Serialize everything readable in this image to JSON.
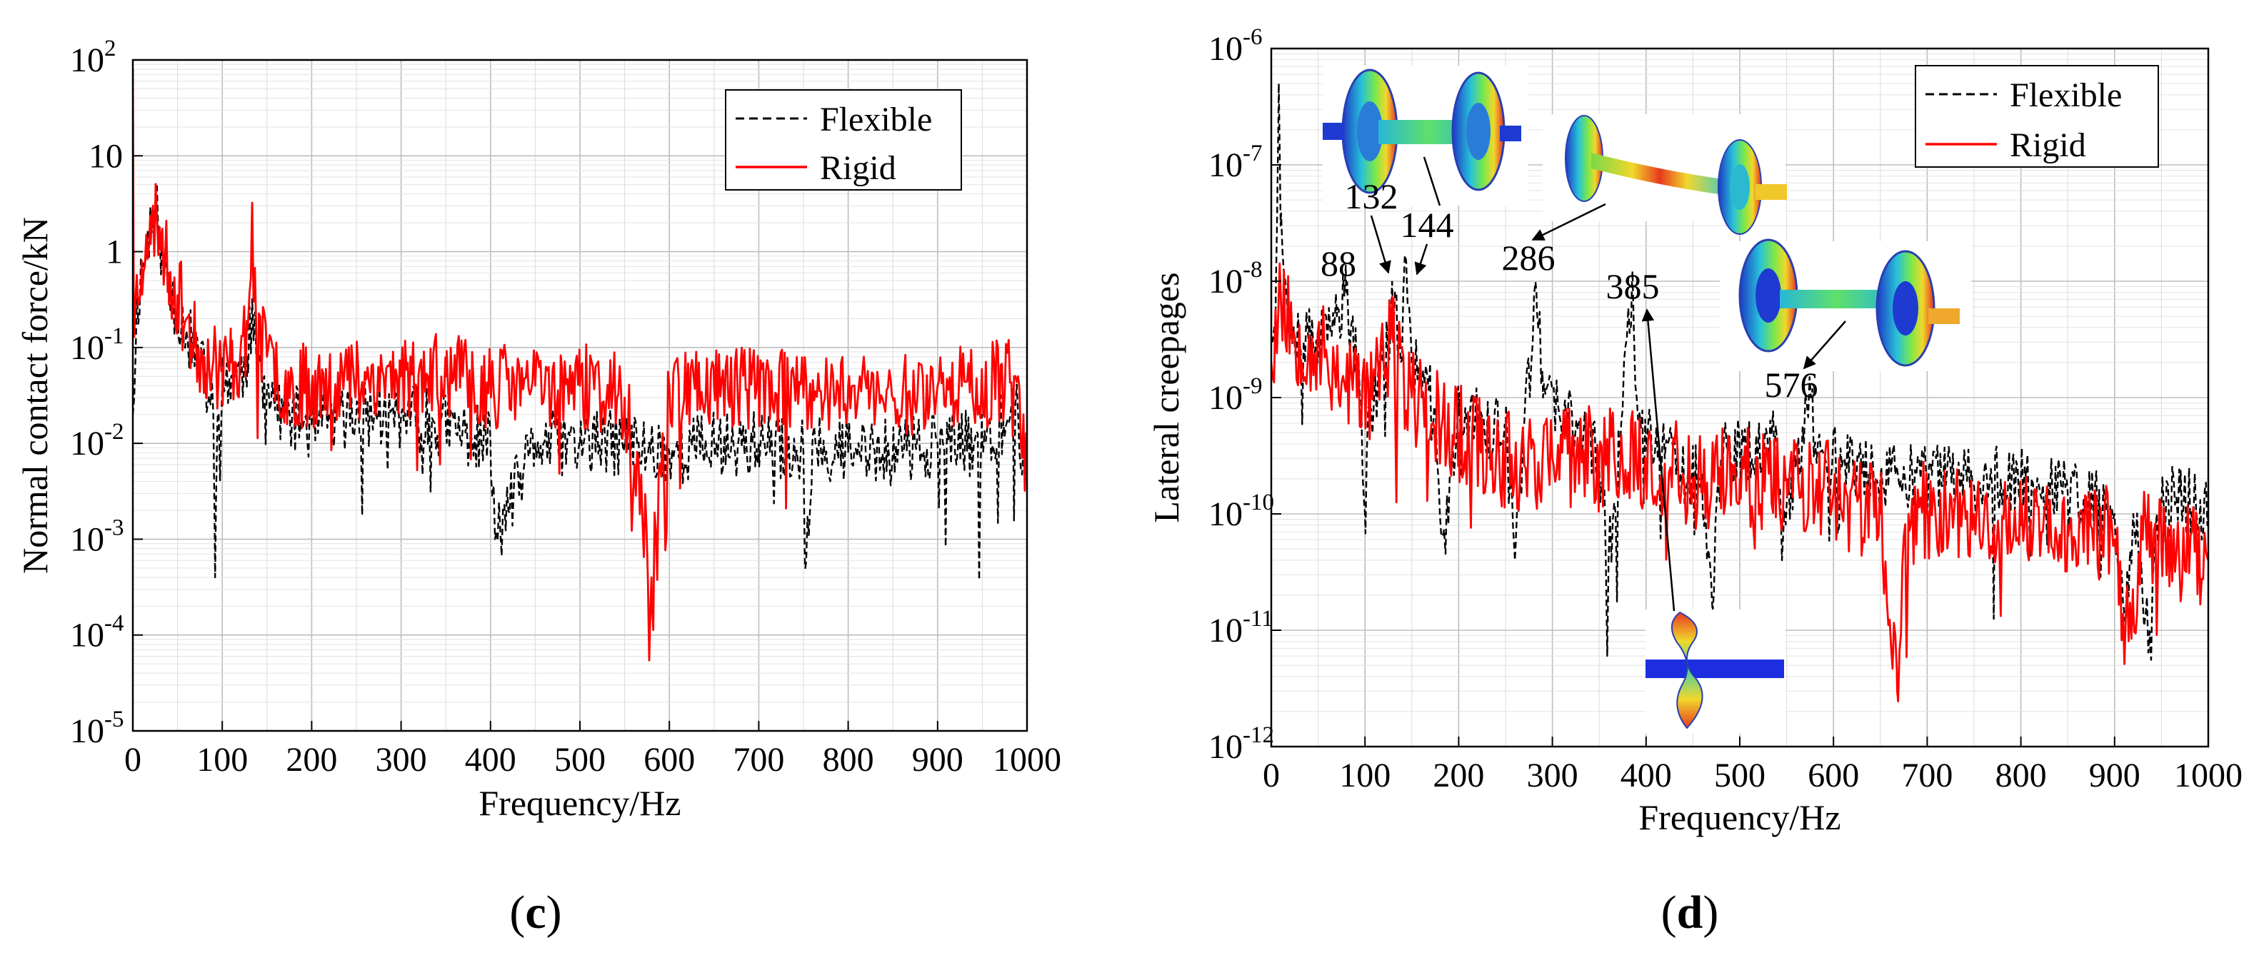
{
  "chart_data": [
    {
      "id": "c",
      "type": "line",
      "caption": "(c)",
      "caption_letter": "c",
      "xlabel": "Frequency/Hz",
      "ylabel": "Normal contact force/kN",
      "x_scale": "linear",
      "y_scale": "log",
      "xlim": [
        0,
        1000
      ],
      "ylim": [
        1e-05,
        100
      ],
      "grid": true,
      "legend_position": "top-right",
      "x_ticks": [
        "0",
        "100",
        "200",
        "300",
        "400",
        "500",
        "600",
        "700",
        "800",
        "900",
        "1000"
      ],
      "y_ticks": [
        {
          "exp": -5,
          "base": "10",
          "sup": "-5"
        },
        {
          "exp": -4,
          "base": "10",
          "sup": "-4"
        },
        {
          "exp": -3,
          "base": "10",
          "sup": "-3"
        },
        {
          "exp": -2,
          "base": "10",
          "sup": "-2"
        },
        {
          "exp": -1,
          "base": "10",
          "sup": "-1"
        },
        {
          "exp": 0,
          "base": "1",
          "sup": ""
        },
        {
          "exp": 1,
          "base": "10",
          "sup": ""
        },
        {
          "exp": 2,
          "base": "10",
          "sup": "2"
        }
      ],
      "series": [
        {
          "name": "Flexible",
          "color": "#000000",
          "style": "dashed",
          "seed": 11,
          "jitter": 0.35,
          "keypoints": [
            [
              0,
              0.02
            ],
            [
              5,
              0.3
            ],
            [
              10,
              0.6
            ],
            [
              15,
              1.0
            ],
            [
              20,
              2.0
            ],
            [
              25,
              3.0
            ],
            [
              30,
              1.5
            ],
            [
              40,
              0.4
            ],
            [
              50,
              0.25
            ],
            [
              60,
              0.15
            ],
            [
              70,
              0.08
            ],
            [
              80,
              0.05
            ],
            [
              90,
              0.02
            ],
            [
              92,
              0.0004
            ],
            [
              95,
              0.02
            ],
            [
              100,
              0.04
            ],
            [
              110,
              0.05
            ],
            [
              120,
              0.05
            ],
            [
              128,
              0.08
            ],
            [
              133,
              0.2
            ],
            [
              138,
              0.08
            ],
            [
              150,
              0.04
            ],
            [
              170,
              0.02
            ],
            [
              200,
              0.015
            ],
            [
              250,
              0.02
            ],
            [
              300,
              0.02
            ],
            [
              350,
              0.015
            ],
            [
              400,
              0.01
            ],
            [
              405,
              0.001
            ],
            [
              450,
              0.01
            ],
            [
              500,
              0.01
            ],
            [
              550,
              0.01
            ],
            [
              600,
              0.008
            ],
            [
              650,
              0.01
            ],
            [
              700,
              0.01
            ],
            [
              750,
              0.008
            ],
            [
              752,
              0.0005
            ],
            [
              760,
              0.01
            ],
            [
              800,
              0.008
            ],
            [
              850,
              0.008
            ],
            [
              900,
              0.01
            ],
            [
              950,
              0.01
            ],
            [
              990,
              0.02
            ],
            [
              1000,
              0.004
            ]
          ]
        },
        {
          "name": "Rigid",
          "color": "#ff0000",
          "style": "solid",
          "seed": 23,
          "jitter": 0.45,
          "keypoints": [
            [
              0,
              80
            ],
            [
              1,
              0.2
            ],
            [
              5,
              0.4
            ],
            [
              10,
              0.8
            ],
            [
              15,
              1.5
            ],
            [
              20,
              1.2
            ],
            [
              25,
              2.5
            ],
            [
              30,
              1.8
            ],
            [
              40,
              0.6
            ],
            [
              50,
              0.35
            ],
            [
              60,
              0.2
            ],
            [
              70,
              0.1
            ],
            [
              80,
              0.08
            ],
            [
              100,
              0.06
            ],
            [
              110,
              0.07
            ],
            [
              120,
              0.08
            ],
            [
              128,
              0.15
            ],
            [
              133,
              2.0
            ],
            [
              138,
              0.15
            ],
            [
              150,
              0.08
            ],
            [
              170,
              0.04
            ],
            [
              200,
              0.04
            ],
            [
              250,
              0.05
            ],
            [
              300,
              0.05
            ],
            [
              350,
              0.05
            ],
            [
              400,
              0.04
            ],
            [
              450,
              0.04
            ],
            [
              500,
              0.04
            ],
            [
              550,
              0.03
            ],
            [
              580,
              0.0004
            ],
            [
              600,
              0.04
            ],
            [
              650,
              0.04
            ],
            [
              700,
              0.04
            ],
            [
              750,
              0.03
            ],
            [
              800,
              0.04
            ],
            [
              850,
              0.03
            ],
            [
              900,
              0.04
            ],
            [
              950,
              0.04
            ],
            [
              990,
              0.05
            ],
            [
              1000,
              0.005
            ]
          ]
        }
      ]
    },
    {
      "id": "d",
      "type": "line",
      "caption": "(d)",
      "caption_letter": "d",
      "xlabel": "Frequency/Hz",
      "ylabel": "Lateral creepages",
      "x_scale": "linear",
      "y_scale": "log",
      "xlim": [
        0,
        1000
      ],
      "ylim": [
        1e-12,
        1e-06
      ],
      "grid": true,
      "legend_position": "top-right",
      "x_ticks": [
        "0",
        "100",
        "200",
        "300",
        "400",
        "500",
        "600",
        "700",
        "800",
        "900",
        "1000"
      ],
      "y_ticks": [
        {
          "exp": -12,
          "base": "10",
          "sup": "-12"
        },
        {
          "exp": -11,
          "base": "10",
          "sup": "-11"
        },
        {
          "exp": -10,
          "base": "10",
          "sup": "-10"
        },
        {
          "exp": -9,
          "base": "10",
          "sup": "-9"
        },
        {
          "exp": -8,
          "base": "10",
          "sup": "-8"
        },
        {
          "exp": -7,
          "base": "10",
          "sup": "-7"
        },
        {
          "exp": -6,
          "base": "10",
          "sup": "-6"
        }
      ],
      "annotations": [
        {
          "text": "88",
          "x": 75
        },
        {
          "text": "132",
          "x": 125
        },
        {
          "text": "144",
          "x": 165
        },
        {
          "text": "286",
          "x": 283
        },
        {
          "text": "385",
          "x": 385
        },
        {
          "text": "576",
          "x": 595
        }
      ],
      "series": [
        {
          "name": "Flexible",
          "color": "#000000",
          "style": "dashed",
          "seed": 37,
          "jitter": 0.3,
          "keypoints": [
            [
              0,
              3e-09
            ],
            [
              5,
              1e-08
            ],
            [
              8,
              5e-07
            ],
            [
              10,
              3e-08
            ],
            [
              15,
              1e-08
            ],
            [
              20,
              5e-09
            ],
            [
              40,
              3e-09
            ],
            [
              60,
              3e-09
            ],
            [
              70,
              5e-09
            ],
            [
              80,
              8e-09
            ],
            [
              85,
              4e-09
            ],
            [
              95,
              1e-09
            ],
            [
              100,
              1e-10
            ],
            [
              105,
              8e-10
            ],
            [
              120,
              2e-09
            ],
            [
              132,
              8e-09
            ],
            [
              138,
              2e-09
            ],
            [
              144,
              1.5e-08
            ],
            [
              150,
              2e-09
            ],
            [
              170,
              1e-09
            ],
            [
              185,
              6e-11
            ],
            [
              200,
              7e-10
            ],
            [
              250,
              5e-10
            ],
            [
              260,
              4e-11
            ],
            [
              270,
              6e-10
            ],
            [
              283,
              8e-09
            ],
            [
              290,
              1e-09
            ],
            [
              330,
              5e-10
            ],
            [
              350,
              3e-10
            ],
            [
              360,
              4e-11
            ],
            [
              375,
              8e-10
            ],
            [
              385,
              1e-08
            ],
            [
              390,
              1e-09
            ],
            [
              420,
              3e-10
            ],
            [
              460,
              2e-10
            ],
            [
              470,
              2e-11
            ],
            [
              480,
              3e-10
            ],
            [
              540,
              4e-10
            ],
            [
              545,
              4e-11
            ],
            [
              560,
              3e-10
            ],
            [
              576,
              1e-09
            ],
            [
              580,
              4e-10
            ],
            [
              650,
              2e-10
            ],
            [
              700,
              2e-10
            ],
            [
              800,
              2e-10
            ],
            [
              850,
              1.5e-10
            ],
            [
              900,
              1e-10
            ],
            [
              910,
              1.5e-11
            ],
            [
              920,
              1e-10
            ],
            [
              938,
              7e-12
            ],
            [
              945,
              1e-10
            ],
            [
              970,
              1.5e-10
            ],
            [
              1000,
              1e-10
            ]
          ]
        },
        {
          "name": "Rigid",
          "color": "#ff0000",
          "style": "solid",
          "seed": 53,
          "jitter": 0.45,
          "keypoints": [
            [
              0,
              2e-09
            ],
            [
              10,
              8e-09
            ],
            [
              20,
              4e-09
            ],
            [
              40,
              3e-09
            ],
            [
              60,
              2e-09
            ],
            [
              80,
              1.5e-09
            ],
            [
              100,
              1e-09
            ],
            [
              120,
              2e-09
            ],
            [
              130,
              3e-09
            ],
            [
              135,
              2e-09
            ],
            [
              150,
              1e-09
            ],
            [
              200,
              5e-10
            ],
            [
              250,
              3e-10
            ],
            [
              300,
              3e-10
            ],
            [
              350,
              3e-10
            ],
            [
              400,
              3e-10
            ],
            [
              450,
              2e-10
            ],
            [
              500,
              2e-10
            ],
            [
              550,
              2e-10
            ],
            [
              600,
              1.5e-10
            ],
            [
              650,
              1e-10
            ],
            [
              668,
              3e-12
            ],
            [
              680,
              1e-10
            ],
            [
              700,
              1e-10
            ],
            [
              750,
              1e-10
            ],
            [
              800,
              8e-11
            ],
            [
              850,
              8e-11
            ],
            [
              900,
              6e-11
            ],
            [
              920,
              1.5e-11
            ],
            [
              930,
              6e-11
            ],
            [
              950,
              5e-11
            ],
            [
              1000,
              4e-11
            ]
          ]
        }
      ]
    }
  ]
}
